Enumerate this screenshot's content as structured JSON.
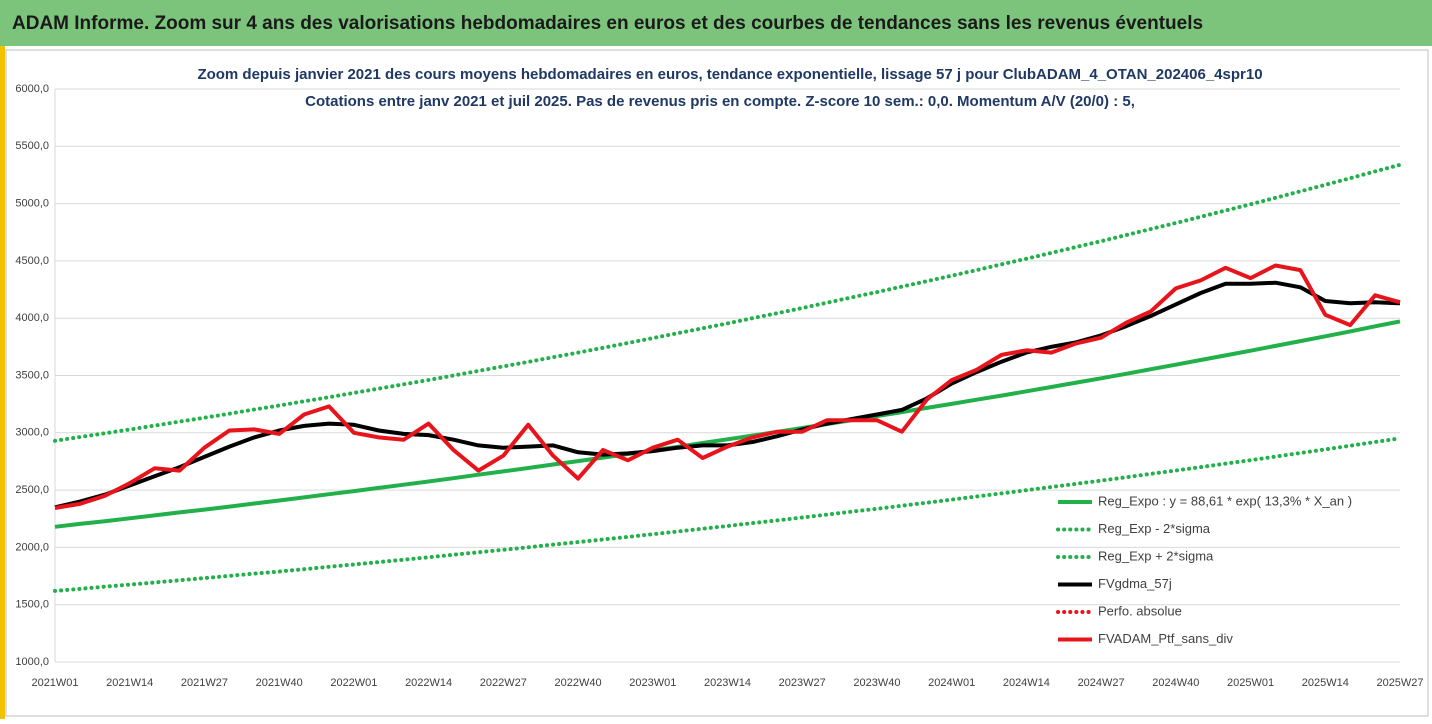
{
  "header": {
    "title": "ADAM Informe. Zoom sur 4 ans des valorisations hebdomadaires en euros et des courbes de tendances sans les revenus éventuels"
  },
  "chart_data": {
    "type": "line",
    "title": "Zoom depuis janvier 2021 des cours moyens hebdomadaires  en euros, tendance exponentielle, lissage 57 j pour ClubADAM_4_OTAN_202406_4spr10",
    "subtitle": "Cotations  entre janv 2021 et juil 2025. Pas de revenus pris en compte. Z-score 10 sem.: 0,0. Momentum  A/V (20/0) : 5,",
    "categories": [
      "2021W01",
      null,
      null,
      "2021W14",
      null,
      null,
      "2021W27",
      null,
      null,
      "2021W40",
      null,
      null,
      "2022W01",
      null,
      null,
      "2022W14",
      null,
      null,
      "2022W27",
      null,
      null,
      "2022W40",
      null,
      null,
      "2023W01",
      null,
      null,
      "2023W14",
      null,
      null,
      "2023W27",
      null,
      null,
      "2023W40",
      null,
      null,
      "2024W01",
      null,
      null,
      "2024W14",
      null,
      null,
      "2024W27",
      null,
      null,
      "2024W40",
      null,
      null,
      "2025W01",
      null,
      null,
      "2025W14",
      null,
      null,
      "2025W27"
    ],
    "ylim": [
      1000,
      6000
    ],
    "yticks": [
      {
        "value": 1000,
        "label": "1000,0"
      },
      {
        "value": 1500,
        "label": "1500,0"
      },
      {
        "value": 2000,
        "label": "2000,0"
      },
      {
        "value": 2500,
        "label": "2500,0"
      },
      {
        "value": 3000,
        "label": "3000,0"
      },
      {
        "value": 3500,
        "label": "3500,0"
      },
      {
        "value": 4000,
        "label": "4000,0"
      },
      {
        "value": 4500,
        "label": "4500,0"
      },
      {
        "value": 5000,
        "label": "5000,0"
      },
      {
        "value": 5500,
        "label": "5500,0"
      },
      {
        "value": 6000,
        "label": "6000,0"
      }
    ],
    "grid": true,
    "legend": "right",
    "series": [
      {
        "name": "Reg_Expo : y = 88,61 * exp( 13,3% *  X_an )",
        "color": "#22b04a",
        "style": "solid",
        "values": [
          2180,
          2205,
          2229,
          2254,
          2279,
          2305,
          2330,
          2356,
          2383,
          2409,
          2436,
          2464,
          2491,
          2519,
          2547,
          2575,
          2604,
          2634,
          2663,
          2693,
          2723,
          2753,
          2784,
          2815,
          2846,
          2878,
          2911,
          2943,
          2976,
          3009,
          3042,
          3077,
          3111,
          3146,
          3181,
          3217,
          3252,
          3289,
          3325,
          3362,
          3400,
          3438,
          3476,
          3515,
          3555,
          3594,
          3635,
          3675,
          3716,
          3758,
          3800,
          3842,
          3885,
          3929,
          3972
        ]
      },
      {
        "name": "Reg_Exp - 2*sigma",
        "color": "#22b04a",
        "style": "dotted",
        "values": [
          1620,
          1638,
          1657,
          1675,
          1694,
          1713,
          1732,
          1751,
          1771,
          1790,
          1810,
          1831,
          1851,
          1872,
          1893,
          1914,
          1936,
          1957,
          1979,
          2001,
          2024,
          2046,
          2069,
          2092,
          2115,
          2139,
          2163,
          2187,
          2212,
          2236,
          2261,
          2286,
          2312,
          2337,
          2364,
          2390,
          2417,
          2444,
          2471,
          2499,
          2527,
          2555,
          2583,
          2612,
          2642,
          2671,
          2701,
          2731,
          2761,
          2792,
          2824,
          2855,
          2887,
          2920,
          2952
        ]
      },
      {
        "name": "Reg_Exp + 2*sigma",
        "color": "#22b04a",
        "style": "dotted",
        "values": [
          2930,
          2963,
          2996,
          3029,
          3063,
          3098,
          3132,
          3167,
          3203,
          3238,
          3275,
          3311,
          3348,
          3386,
          3423,
          3461,
          3500,
          3540,
          3579,
          3619,
          3660,
          3700,
          3742,
          3784,
          3826,
          3869,
          3912,
          3955,
          4000,
          4044,
          4089,
          4135,
          4182,
          4228,
          4276,
          4323,
          4371,
          4420,
          4470,
          4519,
          4570,
          4621,
          4672,
          4725,
          4778,
          4831,
          4885,
          4940,
          4994,
          5051,
          5107,
          5164,
          5222,
          5281,
          5339
        ]
      },
      {
        "name": "FVgdma_57j",
        "color": "#000000",
        "style": "solid",
        "values": [
          2350,
          2400,
          2460,
          2540,
          2620,
          2700,
          2790,
          2880,
          2960,
          3020,
          3060,
          3080,
          3070,
          3020,
          2990,
          2980,
          2940,
          2890,
          2870,
          2880,
          2890,
          2830,
          2810,
          2820,
          2840,
          2870,
          2890,
          2890,
          2920,
          2970,
          3030,
          3080,
          3120,
          3160,
          3200,
          3300,
          3430,
          3530,
          3620,
          3700,
          3750,
          3790,
          3850,
          3930,
          4020,
          4120,
          4220,
          4300,
          4300,
          4310,
          4270,
          4150,
          4130,
          4140,
          4130
        ]
      },
      {
        "name": "Perfo. absolue",
        "color": "#e8141b",
        "style": "dotted",
        "values": [
          null,
          null,
          null,
          null,
          null,
          null,
          null,
          null,
          null,
          null,
          null,
          null,
          null,
          null,
          null,
          null,
          null,
          null,
          null,
          null,
          null,
          null,
          null,
          null,
          null,
          null,
          null,
          null,
          null,
          null,
          null,
          null,
          null,
          null,
          null,
          null,
          null,
          null,
          null,
          null,
          null,
          null,
          null,
          null,
          null,
          null,
          null,
          null,
          null,
          null,
          null,
          null,
          null,
          null,
          null
        ]
      },
      {
        "name": "FVADAM_Ptf_sans_div",
        "color": "#e8141b",
        "style": "solid",
        "values": [
          2344,
          2380,
          2450,
          2560,
          2690,
          2670,
          2870,
          3020,
          3030,
          2990,
          3160,
          3230,
          3000,
          2960,
          2940,
          3080,
          2850,
          2670,
          2800,
          3070,
          2800,
          2600,
          2850,
          2760,
          2870,
          2940,
          2780,
          2880,
          2960,
          3010,
          3010,
          3110,
          3110,
          3110,
          3010,
          3290,
          3460,
          3550,
          3680,
          3720,
          3700,
          3780,
          3830,
          3960,
          4060,
          4260,
          4330,
          4440,
          4350,
          4460,
          4420,
          4030,
          3940,
          4200,
          4140
        ]
      }
    ]
  }
}
